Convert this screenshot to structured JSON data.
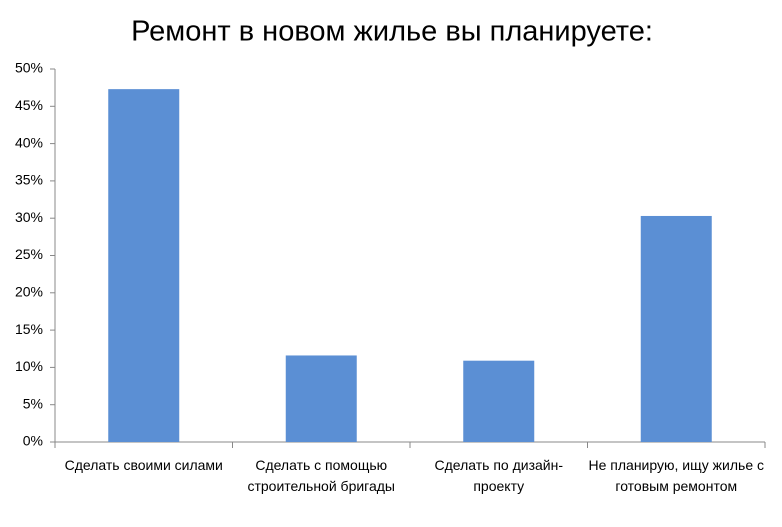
{
  "chart_data": {
    "type": "bar",
    "title": "Ремонт в новом жилье вы планируете:",
    "categories": [
      "Сделать своими силами",
      "Сделать с помощью строительной бригады",
      "Сделать по дизайн-проекту",
      "Не планирую, ищу жилье с готовым ремонтом"
    ],
    "values": [
      47.3,
      11.6,
      10.9,
      30.3
    ],
    "color": "#5b8fd4",
    "ylim": [
      0,
      50
    ],
    "yticks": [
      {
        "value": 0,
        "label": "0%"
      },
      {
        "value": 5,
        "label": "5%"
      },
      {
        "value": 10,
        "label": "10%"
      },
      {
        "value": 15,
        "label": "15%"
      },
      {
        "value": 20,
        "label": "20%"
      },
      {
        "value": 25,
        "label": "25%"
      },
      {
        "value": 30,
        "label": "30%"
      },
      {
        "value": 35,
        "label": "35%"
      },
      {
        "value": 40,
        "label": "40%"
      },
      {
        "value": 45,
        "label": "45%"
      },
      {
        "value": 50,
        "label": "50%"
      }
    ],
    "grid": false
  }
}
